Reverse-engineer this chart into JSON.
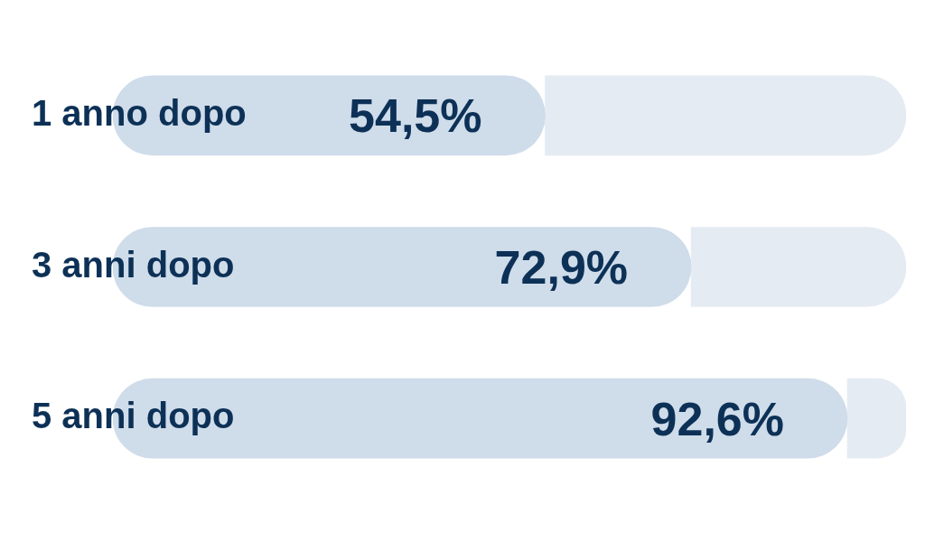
{
  "chart_data": {
    "type": "bar",
    "orientation": "horizontal",
    "stacked": true,
    "categories": [
      "1 anno dopo",
      "3 anni dopo",
      "5 anni dopo"
    ],
    "series": [
      {
        "color": "#cfdcea",
        "values": [
          54.5,
          72.9,
          92.6
        ],
        "value_labels": [
          "54,5%",
          "72,9%",
          "92,6%"
        ]
      },
      {
        "color": "#e5ebf2",
        "values": [
          45.5,
          27.1,
          7.4
        ]
      }
    ]
  }
}
